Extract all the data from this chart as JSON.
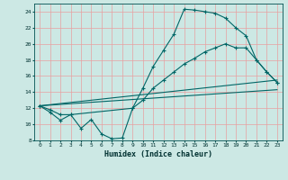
{
  "xlabel": "Humidex (Indice chaleur)",
  "background_color": "#cce8e4",
  "grid_color": "#e8a0a0",
  "line_color": "#006666",
  "xlim": [
    -0.5,
    23.5
  ],
  "ylim": [
    8,
    25
  ],
  "yticks": [
    8,
    10,
    12,
    14,
    16,
    18,
    20,
    22,
    24
  ],
  "xticks": [
    0,
    1,
    2,
    3,
    4,
    5,
    6,
    7,
    8,
    9,
    10,
    11,
    12,
    13,
    14,
    15,
    16,
    17,
    18,
    19,
    20,
    21,
    22,
    23
  ],
  "series": [
    {
      "x": [
        0,
        1,
        2,
        3,
        4,
        5,
        6,
        7,
        8,
        9,
        10,
        11,
        12,
        13,
        14,
        15,
        16,
        17,
        18,
        19,
        20,
        21,
        22,
        23
      ],
      "y": [
        12.3,
        11.5,
        10.5,
        11.2,
        9.5,
        10.6,
        8.8,
        8.2,
        8.3,
        12.0,
        14.5,
        17.2,
        19.2,
        21.2,
        24.3,
        24.2,
        24.0,
        23.8,
        23.2,
        22.0,
        21.0,
        18.0,
        16.5,
        15.2
      ],
      "marker": true
    },
    {
      "x": [
        0,
        1,
        2,
        3,
        9,
        10,
        11,
        12,
        13,
        14,
        15,
        16,
        17,
        18,
        19,
        20,
        21,
        22,
        23
      ],
      "y": [
        12.3,
        11.8,
        11.2,
        11.2,
        12.0,
        13.0,
        14.5,
        15.5,
        16.5,
        17.5,
        18.2,
        19.0,
        19.5,
        20.0,
        19.5,
        19.5,
        18.0,
        16.5,
        15.2
      ],
      "marker": true
    },
    {
      "x": [
        0,
        23
      ],
      "y": [
        12.3,
        15.5
      ],
      "marker": false
    },
    {
      "x": [
        0,
        23
      ],
      "y": [
        12.3,
        14.3
      ],
      "marker": false
    }
  ]
}
